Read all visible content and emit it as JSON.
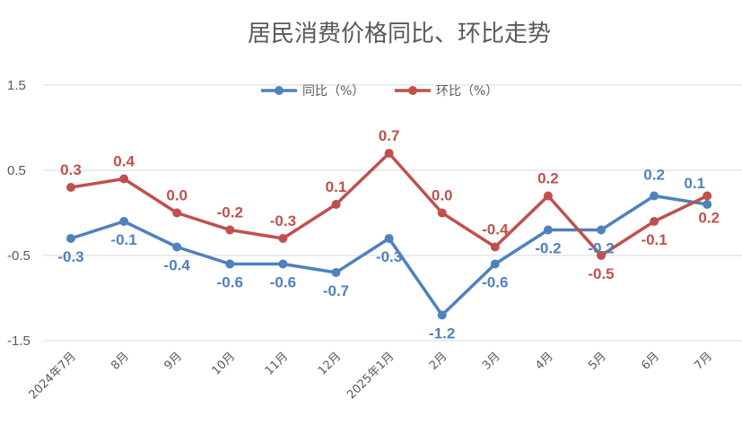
{
  "chart_data": {
    "type": "line",
    "title": "居民消费价格同比、环比走势",
    "categories": [
      "2024年7月",
      "8月",
      "9月",
      "10月",
      "11月",
      "12月",
      "2025年1月",
      "2月",
      "3月",
      "4月",
      "5月",
      "6月",
      "7月"
    ],
    "series": [
      {
        "name": "同比（%）",
        "color": "#4F81BD",
        "values": [
          -0.3,
          -0.1,
          -0.4,
          -0.6,
          -0.6,
          -0.7,
          -0.3,
          -1.2,
          -0.6,
          -0.2,
          -0.2,
          0.2,
          0.1
        ],
        "labels": [
          "-0.3",
          "-0.1",
          "-0.4",
          "-0.6",
          "-0.6",
          "-0.7",
          "-0.3",
          "-1.2",
          "-0.6",
          "-0.2",
          "-0.2",
          "0.2",
          "0.1"
        ]
      },
      {
        "name": "环比（%）",
        "color": "#C0504D",
        "values": [
          0.3,
          0.4,
          0.0,
          -0.2,
          -0.3,
          0.1,
          0.7,
          0.0,
          -0.4,
          0.2,
          -0.5,
          -0.1,
          0.2
        ],
        "labels": [
          "0.3",
          "0.4",
          "0.0",
          "-0.2",
          "-0.3",
          "0.1",
          "0.7",
          "0.0",
          "-0.4",
          "0.2",
          "-0.5",
          "-0.1",
          "0.2"
        ]
      }
    ],
    "y_ticks": [
      "1.5",
      "0.5",
      "-0.5",
      "-1.5"
    ],
    "ylim": [
      -1.5,
      1.5
    ],
    "grid": true,
    "legend_position": "top"
  }
}
